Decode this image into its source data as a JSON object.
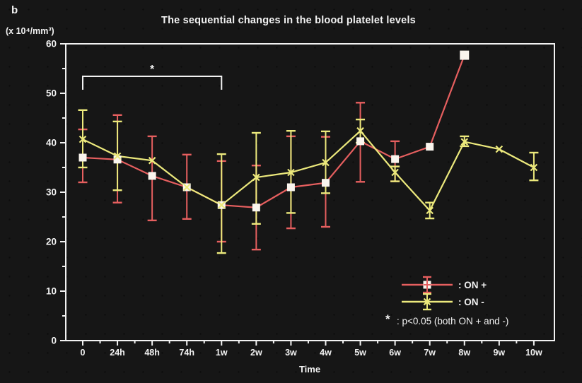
{
  "figure_label": "b",
  "title": "The sequential changes in the blood platelet levels",
  "y_axis_unit": "(x 10⁴/mm³)",
  "x_axis_label": "Time",
  "colors": {
    "background": "#161616",
    "axis": "#f2f2f2",
    "on_plus": "#e65f5f",
    "on_minus": "#ece97c",
    "marker_fill": "#faf5ee"
  },
  "legend": {
    "on_plus_label": ": ON +",
    "on_minus_label": ": ON -",
    "note_star": "*",
    "note_text": ": p<0.05 (both ON + and -)"
  },
  "significance": {
    "label": "*",
    "from_category": "0",
    "to_category": "1w",
    "from_index": 0,
    "to_index": 4
  },
  "chart_data": {
    "type": "line",
    "title": "The sequential changes in the blood platelet levels",
    "xlabel": "Time",
    "ylabel": "(x 10⁴/mm³)",
    "ylim": [
      0,
      60
    ],
    "y_major_ticks": [
      0,
      10,
      20,
      30,
      40,
      50,
      60
    ],
    "y_minor_step": 5,
    "grid": false,
    "legend_position": "lower-right",
    "categories": [
      "0",
      "24h",
      "48h",
      "74h",
      "1w",
      "2w",
      "3w",
      "4w",
      "5w",
      "6w",
      "7w",
      "8w",
      "9w",
      "10w"
    ],
    "series": [
      {
        "name": "ON +",
        "color": "#e65f5f",
        "marker": "square",
        "values": [
          37,
          36.6,
          33.3,
          31,
          27.4,
          26.9,
          31,
          31.9,
          40.3,
          36.7,
          39.2,
          57.7,
          null,
          null
        ],
        "err_high": [
          42.7,
          45.6,
          41.3,
          37.6,
          36.3,
          35.4,
          41.3,
          41.2,
          48.1,
          40.3,
          null,
          null,
          null,
          null
        ],
        "err_low": [
          32,
          27.9,
          24.3,
          24.6,
          20,
          18.4,
          22.7,
          23,
          32.1,
          32.2,
          null,
          null,
          null,
          null
        ]
      },
      {
        "name": "ON -",
        "color": "#ece97c",
        "marker": "x",
        "values": [
          40.7,
          37.3,
          36.4,
          31,
          27.4,
          33,
          34,
          36,
          42.4,
          34,
          26.3,
          40.2,
          38.7,
          35
        ],
        "err_high": [
          46.6,
          44.3,
          null,
          null,
          37.7,
          42,
          42.4,
          42.3,
          44.7,
          35.2,
          27.9,
          41.3,
          null,
          38
        ],
        "err_low": [
          35,
          30.4,
          null,
          null,
          17.7,
          23.6,
          25.8,
          29.8,
          40,
          32.2,
          24.7,
          39.3,
          null,
          32.4
        ]
      }
    ]
  }
}
